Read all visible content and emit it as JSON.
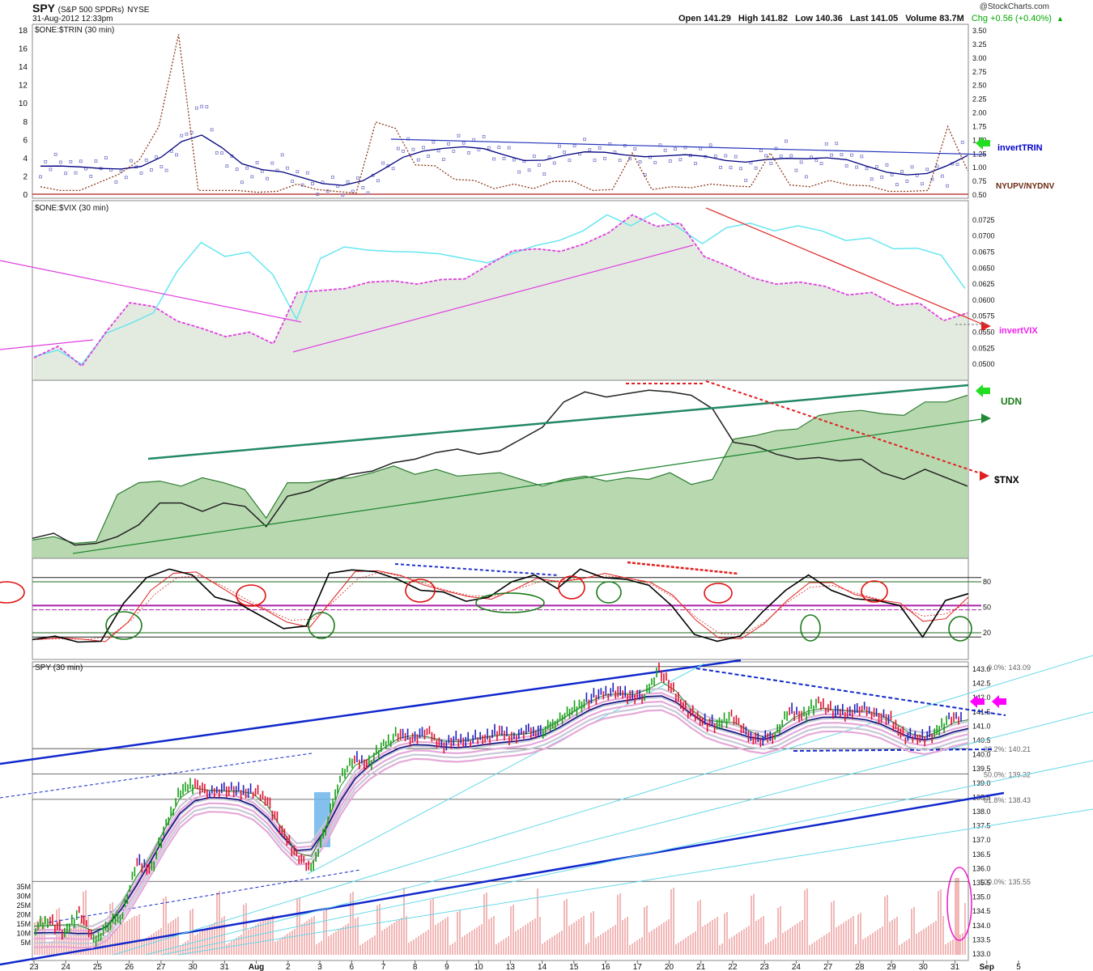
{
  "header": {
    "symbol": "SPY",
    "description": "(S&P 500 SPDRs)",
    "exchange": "NYSE",
    "datetime": "31-Aug-2012 12:33pm",
    "brand": "@StockCharts.com",
    "open": "Open 141.29",
    "high": "High 141.82",
    "low": "Low 140.36",
    "last": "Last 141.05",
    "volume": "Volume 83.7M",
    "change": "Chg +0.56 (+0.40%)"
  },
  "colors": {
    "accent_blue": "#0000cc",
    "trin_dots": "#7777cc",
    "nyupv": "#8b3a1a",
    "vix_cyan": "#66e6f0",
    "vix_magenta": "#e040e0",
    "udn_green": "#2e7d32",
    "udn_fill": "#b8d9b0",
    "tnx_black": "#222222",
    "up_bar": "#12a012",
    "down_bar": "#e01030",
    "neutral_bar": "#2020c0",
    "trend_red": "#e02020",
    "arrow_green": "#22dd22",
    "arrow_magenta": "#ff00ff"
  },
  "panels": {
    "trin": {
      "title": "$ONE:$TRIN (30 min)",
      "label_main": "invertTRIN",
      "label_second": "NYUPV/NYDNV"
    },
    "vix": {
      "title": "$ONE:$VIX (30 min)",
      "label_main": "invertVIX"
    },
    "udn": {
      "label_main": "UDN",
      "label_second": "$TNX"
    },
    "stoch": {
      "label_80": "80",
      "label_50": "50",
      "label_20": "20"
    },
    "spy": {
      "title": "SPY (30 min)"
    }
  },
  "chart_data": {
    "type": "line",
    "x_axis_labels": [
      "23",
      "24",
      "25",
      "26",
      "27",
      "30",
      "31",
      "Aug",
      "2",
      "3",
      "6",
      "7",
      "8",
      "9",
      "10",
      "13",
      "14",
      "15",
      "16",
      "17",
      "20",
      "21",
      "22",
      "23",
      "24",
      "27",
      "28",
      "29",
      "30",
      "31",
      "Sep",
      "5"
    ],
    "trin": {
      "left_ticks": [
        "0",
        "2",
        "4",
        "6",
        "8",
        "10",
        "12",
        "14",
        "16",
        "18"
      ],
      "right_ticks": [
        "0.50",
        "0.75",
        "1.00",
        "1.25",
        "1.50",
        "1.75",
        "2.00",
        "2.25",
        "2.50",
        "2.75",
        "3.00",
        "3.25",
        "3.50"
      ],
      "ylim_left": [
        0,
        18
      ],
      "ylim_right": [
        0.5,
        3.5
      ],
      "series": [
        {
          "name": "invertTRIN",
          "values": [
            3.0,
            3.6,
            2.7,
            3.4,
            2.1,
            3.4,
            3.1,
            5.5,
            10.2,
            4.1,
            2.4,
            2.6,
            3.4,
            1.6,
            0.9,
            1.0,
            0.8,
            2.5,
            5.3,
            4.7,
            4.9,
            5.7,
            5.4,
            4.5,
            3.2,
            3.3,
            4.7,
            5.1,
            4.5,
            4.9,
            3.2,
            4.9,
            4.2,
            4.7,
            3.8,
            2.6,
            4.3,
            4.9,
            2.5,
            5.1,
            4.2,
            2.9,
            2.3,
            2.0,
            2.3,
            2.0,
            5.7
          ]
        },
        {
          "name": "NYUPV/NYDNV",
          "values": [
            0.9,
            0.5,
            0.5,
            1.4,
            2.3,
            3.8,
            7.5,
            17.6,
            0.5,
            0.5,
            0.5,
            0.3,
            0.4,
            1.2,
            0.6,
            0.4,
            0.2,
            8.0,
            7.3,
            3.3,
            3.2,
            1.7,
            1.6,
            0.7,
            1.2,
            0.7,
            1.5,
            1.5,
            0.5,
            0.6,
            4.6,
            0.6,
            0.9,
            0.8,
            1.2,
            1.0,
            0.9,
            4.6,
            1.1,
            0.9,
            1.6,
            1.1,
            1.0,
            0.4,
            0.4,
            0.5,
            7.5,
            2.7
          ]
        }
      ]
    },
    "vix": {
      "right_ticks": [
        "0.0500",
        "0.0525",
        "0.0550",
        "0.0575",
        "0.0600",
        "0.0625",
        "0.0650",
        "0.0675",
        "0.0700",
        "0.0725"
      ],
      "ylim": [
        0.0485,
        0.0745
      ],
      "series": [
        {
          "name": "VIX (cyan)",
          "values": [
            0.0512,
            0.0522,
            0.05,
            0.0548,
            0.0563,
            0.058,
            0.0645,
            0.069,
            0.0668,
            0.0675,
            0.064,
            0.057,
            0.0665,
            0.0683,
            0.0678,
            0.0676,
            0.0675,
            0.0672,
            0.0665,
            0.0658,
            0.0672,
            0.0685,
            0.0693,
            0.0708,
            0.0733,
            0.0716,
            0.0736,
            0.0713,
            0.0688,
            0.0713,
            0.072,
            0.0708,
            0.0716,
            0.0708,
            0.0693,
            0.0697,
            0.068,
            0.0681,
            0.067,
            0.0618
          ]
        },
        {
          "name": "invertVIX",
          "values": [
            0.051,
            0.0528,
            0.0497,
            0.055,
            0.0596,
            0.059,
            0.0567,
            0.0556,
            0.0543,
            0.055,
            0.0532,
            0.0612,
            0.0615,
            0.0618,
            0.0628,
            0.063,
            0.0625,
            0.0632,
            0.0633,
            0.0655,
            0.0677,
            0.068,
            0.0676,
            0.0688,
            0.0705,
            0.0733,
            0.0715,
            0.072,
            0.0668,
            0.0653,
            0.0635,
            0.0625,
            0.0628,
            0.0622,
            0.0608,
            0.0612,
            0.0592,
            0.0595,
            0.0568,
            0.058
          ]
        }
      ]
    },
    "udn_tnx": {
      "series": [
        {
          "name": "UDN",
          "values": [
            8,
            10,
            6,
            7,
            35,
            42,
            43,
            40,
            45,
            42,
            38,
            21,
            42,
            42,
            44,
            45,
            48,
            52,
            47,
            50,
            46,
            47,
            48,
            44,
            40,
            44,
            46,
            43,
            45,
            44,
            48,
            41,
            44,
            68,
            70,
            73,
            74,
            82,
            84,
            85,
            83,
            82,
            90,
            90,
            94
          ]
        },
        {
          "name": "$TNX",
          "values": [
            9,
            12,
            5,
            6,
            10,
            17,
            30,
            30,
            25,
            30,
            28,
            16,
            34,
            37,
            43,
            47,
            49,
            54,
            56,
            60,
            62,
            59,
            61,
            68,
            75,
            90,
            96,
            93,
            95,
            97,
            96,
            94,
            86,
            66,
            64,
            59,
            56,
            57,
            55,
            56,
            48,
            44,
            50,
            45,
            40
          ]
        }
      ]
    },
    "stochastics": {
      "levels": [
        80,
        50,
        20
      ],
      "values": [
        12,
        16,
        9,
        10,
        55,
        85,
        95,
        88,
        62,
        55,
        40,
        25,
        28,
        90,
        94,
        92,
        83,
        70,
        68,
        57,
        62,
        80,
        88,
        72,
        95,
        85,
        83,
        76,
        52,
        18,
        10,
        16,
        45,
        70,
        88,
        70,
        60,
        58,
        52,
        15,
        58,
        66
      ]
    },
    "spy": {
      "right_ticks": [
        "133.0",
        "133.5",
        "134.0",
        "134.5",
        "135.0",
        "135.5",
        "136.0",
        "136.5",
        "137.0",
        "137.5",
        "138.0",
        "138.5",
        "139.0",
        "139.5",
        "140.0",
        "140.5",
        "141.0",
        "141.5",
        "142.0",
        "142.5",
        "143.0"
      ],
      "ylim": [
        133.0,
        143.1
      ],
      "volume_ticks": [
        "5M",
        "10M",
        "15M",
        "20M",
        "25M",
        "30M",
        "35M"
      ],
      "fib_levels": [
        {
          "label": "0.0%: 143.09",
          "value": 143.09
        },
        {
          "label": "38.2%: 140.21",
          "value": 140.21
        },
        {
          "label": "50.0%: 139.32",
          "value": 139.32
        },
        {
          "label": "61.8%: 138.43",
          "value": 138.43
        },
        {
          "label": "100.0%: 135.55",
          "value": 135.55
        }
      ],
      "close": [
        133.9,
        134.2,
        133.7,
        134.5,
        133.4,
        134.0,
        134.4,
        136.2,
        136.0,
        137.5,
        138.7,
        139.0,
        138.6,
        138.8,
        138.7,
        138.7,
        138.4,
        137.3,
        136.5,
        135.9,
        137.4,
        139.2,
        139.8,
        139.7,
        140.3,
        140.7,
        140.6,
        140.8,
        140.3,
        140.5,
        140.5,
        140.6,
        140.8,
        140.6,
        140.8,
        140.8,
        141.2,
        141.5,
        141.9,
        142.1,
        142.2,
        142.1,
        142.0,
        143.0,
        142.2,
        141.5,
        141.2,
        141.0,
        141.4,
        140.7,
        140.5,
        140.7,
        141.5,
        141.4,
        141.8,
        141.5,
        141.5,
        141.6,
        141.4,
        141.2,
        140.6,
        140.6,
        140.7,
        141.3,
        141.2
      ]
    }
  }
}
